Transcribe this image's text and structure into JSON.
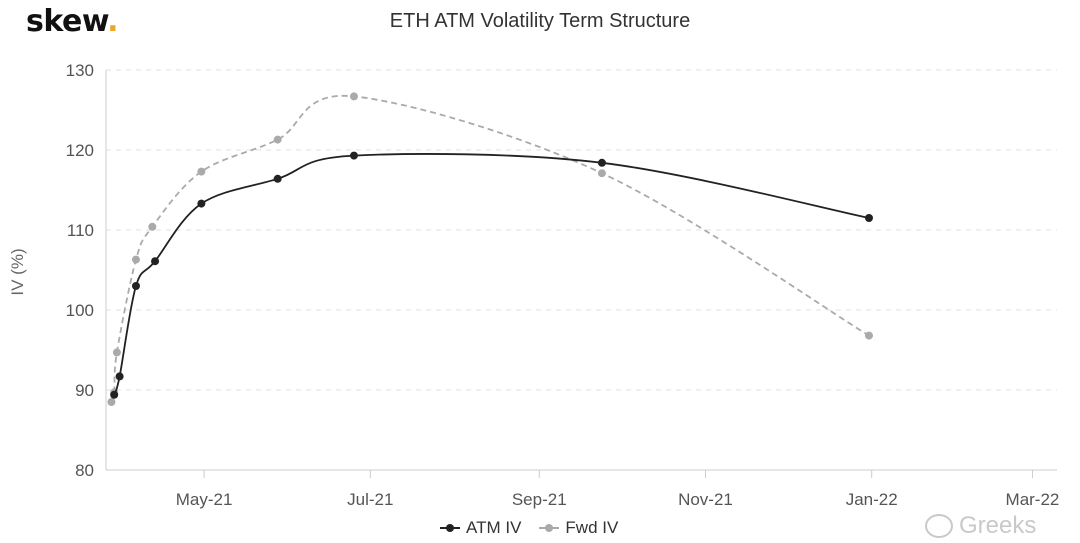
{
  "header": {
    "logo_text": "skew",
    "logo_dot": "."
  },
  "chart_data": {
    "type": "line",
    "title": "ETH ATM Volatility Term Structure",
    "ylabel": "IV (%)",
    "xlabel": "",
    "ylim": [
      80,
      130
    ],
    "yticks": [
      80,
      90,
      100,
      110,
      120,
      130
    ],
    "xlim": [
      "2021-03-26",
      "2022-03-10"
    ],
    "xticks": [
      {
        "label": "May-21",
        "date": "2021-05-01"
      },
      {
        "label": "Jul-21",
        "date": "2021-07-01"
      },
      {
        "label": "Sep-21",
        "date": "2021-09-01"
      },
      {
        "label": "Nov-21",
        "date": "2021-11-01"
      },
      {
        "label": "Jan-22",
        "date": "2022-01-01"
      },
      {
        "label": "Mar-22",
        "date": "2022-03-01"
      }
    ],
    "grid": true,
    "legend_position": "bottom",
    "series": [
      {
        "name": "ATM IV",
        "color": "#222222",
        "line_style": "solid",
        "points": [
          {
            "x": "2021-03-29",
            "y": 89.4
          },
          {
            "x": "2021-03-31",
            "y": 91.7
          },
          {
            "x": "2021-04-06",
            "y": 103.0
          },
          {
            "x": "2021-04-13",
            "y": 106.1
          },
          {
            "x": "2021-04-30",
            "y": 113.3
          },
          {
            "x": "2021-05-28",
            "y": 116.4
          },
          {
            "x": "2021-06-25",
            "y": 119.3
          },
          {
            "x": "2021-09-24",
            "y": 118.4
          },
          {
            "x": "2021-12-31",
            "y": 111.5
          }
        ]
      },
      {
        "name": "Fwd IV",
        "color": "#aaaaaa",
        "line_style": "dashed",
        "points": [
          {
            "x": "2021-03-28",
            "y": 88.5
          },
          {
            "x": "2021-03-29",
            "y": 89.7
          },
          {
            "x": "2021-03-30",
            "y": 94.7
          },
          {
            "x": "2021-04-06",
            "y": 106.3
          },
          {
            "x": "2021-04-12",
            "y": 110.4
          },
          {
            "x": "2021-04-30",
            "y": 117.3
          },
          {
            "x": "2021-05-28",
            "y": 121.3
          },
          {
            "x": "2021-06-25",
            "y": 126.7
          },
          {
            "x": "2021-09-24",
            "y": 117.1
          },
          {
            "x": "2021-12-31",
            "y": 96.8
          }
        ]
      }
    ]
  },
  "watermark": {
    "text": "Greeks"
  }
}
